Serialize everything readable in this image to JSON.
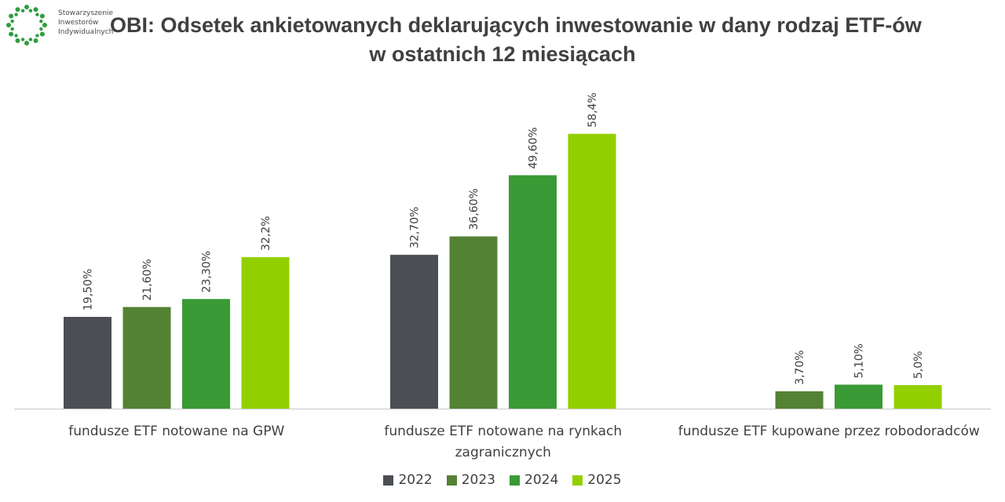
{
  "logo": {
    "lines": [
      "Stowarzyszenie",
      "Inwestorów",
      "Indywidualnych"
    ],
    "color": "#2e9e3e"
  },
  "chart_data": {
    "type": "bar",
    "title_lines": [
      "OBI: Odsetek ankietowanych deklarujących inwestowanie w dany rodzaj ETF-ów",
      "w ostatnich 12 miesiącach"
    ],
    "categories": [
      [
        "fundusze ETF notowane na GPW"
      ],
      [
        "fundusze ETF notowane na rynkach",
        "zagranicznych"
      ],
      [
        "fundusze ETF kupowane przez robodoradców"
      ]
    ],
    "series": [
      {
        "name": "2022",
        "color": "#4b4f54",
        "values": [
          19.5,
          32.7,
          null
        ],
        "labels": [
          "19,50%",
          "32,70%",
          ""
        ]
      },
      {
        "name": "2023",
        "color": "#548235",
        "values": [
          21.6,
          36.6,
          3.7
        ],
        "labels": [
          "21,60%",
          "36,60%",
          "3,70%"
        ]
      },
      {
        "name": "2024",
        "color": "#3a9a35",
        "values": [
          23.3,
          49.6,
          5.1
        ],
        "labels": [
          "23,30%",
          "49,60%",
          "5,10%"
        ]
      },
      {
        "name": "2025",
        "color": "#92d000",
        "values": [
          32.2,
          58.4,
          5.0
        ],
        "labels": [
          "32,2%",
          "58,4%",
          "5,0%"
        ]
      }
    ],
    "ylim": [
      0,
      70
    ],
    "grid": false,
    "legend": "bottom"
  }
}
